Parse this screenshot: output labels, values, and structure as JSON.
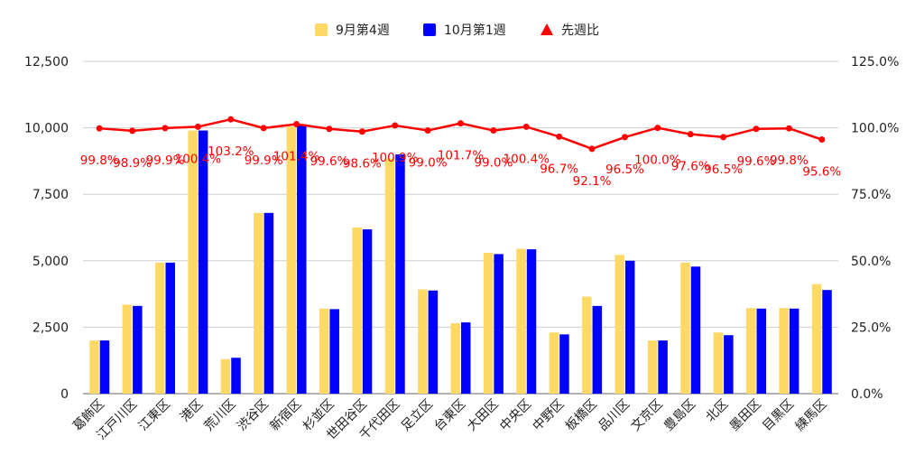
{
  "chart_data": {
    "type": "bar",
    "categories": [
      "葛飾区",
      "江戸川区",
      "江東区",
      "港区",
      "荒川区",
      "渋谷区",
      "新宿区",
      "杉並区",
      "世田谷区",
      "千代田区",
      "足立区",
      "台東区",
      "大田区",
      "中央区",
      "中野区",
      "板橋区",
      "品川区",
      "文京区",
      "豊島区",
      "北区",
      "墨田区",
      "目黒区",
      "練馬区"
    ],
    "series": [
      {
        "name": "9月第4週",
        "axis": "left",
        "color": "#ffd966",
        "values": [
          2000,
          3350,
          4930,
          9900,
          1300,
          6800,
          10050,
          3200,
          6250,
          8850,
          3920,
          2650,
          5300,
          5450,
          2300,
          3650,
          5220,
          2000,
          4930,
          2300,
          3220,
          3220,
          4120
        ]
      },
      {
        "name": "10月第1週",
        "axis": "left",
        "color": "#0000ff",
        "values": [
          2000,
          3300,
          4930,
          9900,
          1350,
          6800,
          10100,
          3180,
          6180,
          9000,
          3880,
          2680,
          5250,
          5430,
          2230,
          3300,
          5000,
          2000,
          4780,
          2200,
          3200,
          3200,
          3900
        ]
      },
      {
        "name": "先週比",
        "axis": "right",
        "type": "line",
        "color": "#ff0000",
        "values": [
          99.8,
          98.9,
          99.9,
          100.4,
          103.2,
          99.9,
          101.4,
          99.6,
          98.6,
          100.9,
          99.0,
          101.7,
          99.0,
          100.4,
          96.7,
          92.1,
          96.5,
          100.0,
          97.6,
          96.5,
          99.6,
          99.8,
          95.6
        ]
      }
    ],
    "data_labels": [
      "99.8%",
      "98.9%",
      "99.9%",
      "100.4%",
      "103.2%",
      "99.9%",
      "101.4%",
      "99.6%",
      "98.6%",
      "100.9%",
      "99.0%",
      "101.7%",
      "99.0%",
      "100.4%",
      "96.7%",
      "92.1%",
      "96.5%",
      "100.0%",
      "97.6%",
      "96.5%",
      "99.6%",
      "99.8%",
      "95.6%"
    ],
    "yticks_left": [
      "0",
      "2,500",
      "5,000",
      "7,500",
      "10,000",
      "12,500"
    ],
    "yticks_right": [
      "0.0%",
      "25.0%",
      "50.0%",
      "75.0%",
      "100.0%",
      "125.0%"
    ],
    "ylim_left": [
      0,
      12500
    ],
    "ylim_right": [
      0,
      125
    ],
    "legend_position": "top",
    "grid": true
  }
}
